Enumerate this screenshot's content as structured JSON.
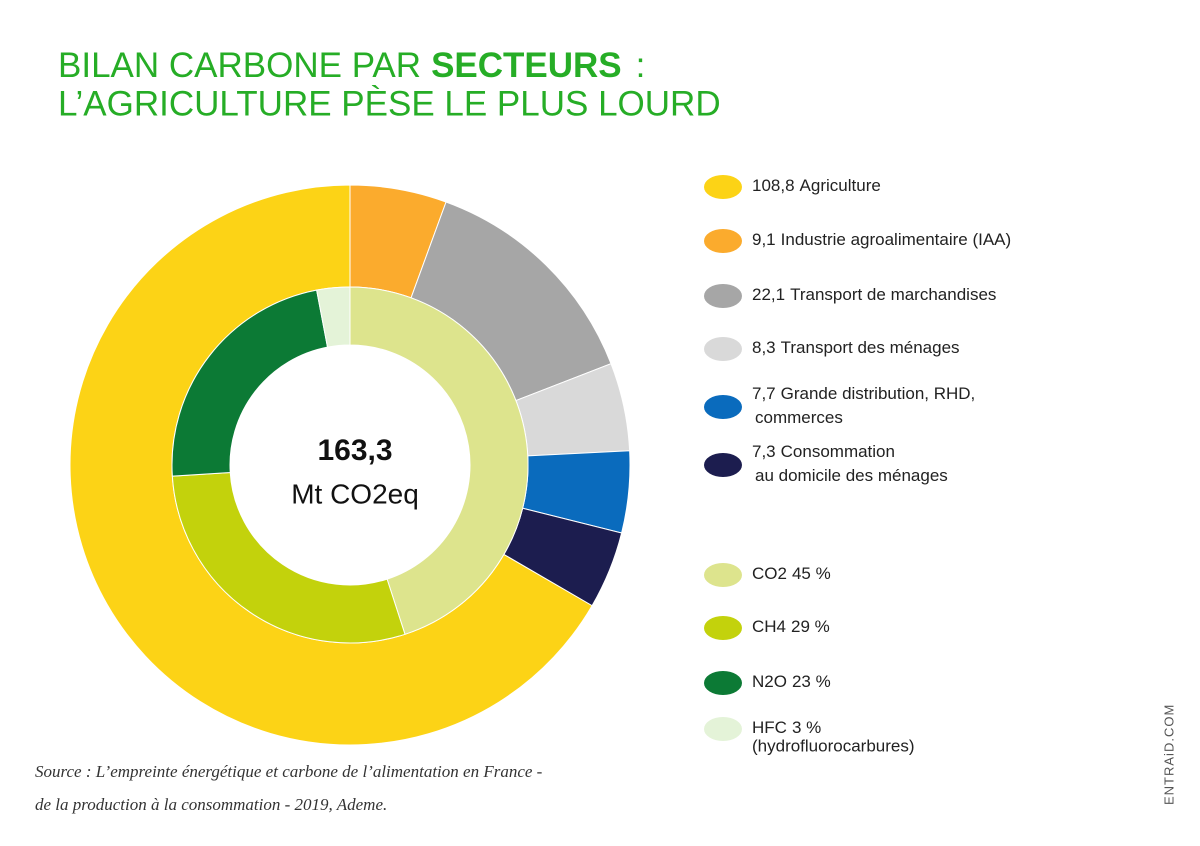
{
  "chart_data": [
    {
      "type": "pie",
      "title": {
        "line1": "BILAN CARBONE PAR",
        "emphasis": "SECTEURS",
        "line1_end": ":",
        "line2": "L’AGRICULTURE PÈSE LE PLUS LOURD"
      },
      "categories": [
        "Agriculture",
        "Industrie agroalimentaire (IAA)",
        "Transport de marchandises",
        "Transport des ménages",
        "Grande distribution, RHD, commerces",
        "Consommation au domicile des ménages"
      ],
      "values": [
        108.8,
        9.1,
        22.1,
        8.3,
        7.7,
        7.3
      ],
      "value_labels": [
        "108,8",
        "9,1",
        "22,1",
        "8,3",
        "7,7",
        "7,3"
      ],
      "colors": [
        "#fcd316",
        "#fbab2d",
        "#a6a6a6",
        "#d9d9d9",
        "#0a6bbd",
        "#1c1d4f"
      ],
      "center_value": {
        "value": 163.3,
        "label": "163,3"
      },
      "center_unit": "Mt CO2eq",
      "source": [
        "Source : L’empreinte énergétique et carbone de l’alimentation en France -",
        "de la production à la consommation - 2019, Ademe."
      ],
      "watermark": "ENTRAiD.COM"
    },
    {
      "type": "pie",
      "categories": [
        "CO2",
        "CH4",
        "N2O",
        "HFC"
      ],
      "values": [
        45,
        29,
        23,
        3
      ],
      "value_labels": [
        "45 %",
        "29 %",
        "23 %",
        "3 %"
      ],
      "colors": [
        "#dde48d",
        "#c3d20c",
        "#0c7a35",
        "#e4f3d8"
      ],
      "hfc_note": "(hydrofluorocarbures)"
    }
  ]
}
